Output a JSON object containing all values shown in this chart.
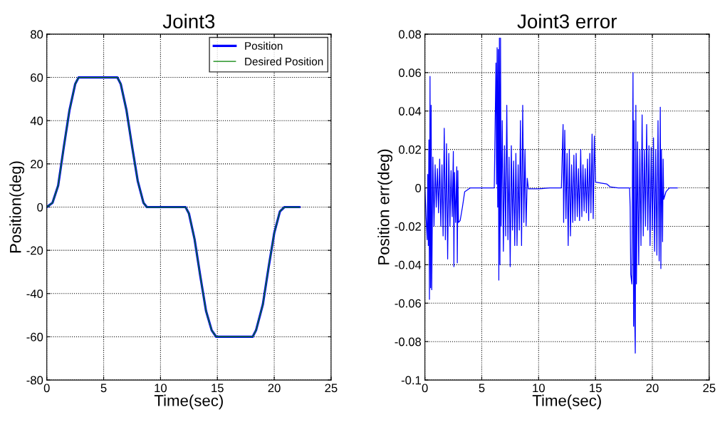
{
  "chart_data": [
    {
      "type": "line",
      "title": "Joint3",
      "xlabel": "Time(sec)",
      "ylabel": "Position(deg)",
      "xlim": [
        0,
        25
      ],
      "ylim": [
        -80,
        80
      ],
      "xticks": [
        0,
        5,
        10,
        15,
        20,
        25
      ],
      "yticks": [
        -80,
        -60,
        -40,
        -20,
        0,
        20,
        40,
        60,
        80
      ],
      "grid": true,
      "legend": "top right",
      "x": [
        0,
        0.5,
        1,
        1.5,
        2,
        2.5,
        2.8,
        6.2,
        6.5,
        7,
        7.5,
        8,
        8.5,
        8.8,
        12.2,
        12.5,
        13,
        13.5,
        14,
        14.5,
        14.9,
        18.1,
        18.4,
        19,
        19.5,
        20,
        20.5,
        20.9,
        22.2
      ],
      "series": [
        {
          "name": "Position",
          "color": "#0000ff",
          "values": [
            0,
            2,
            10,
            28,
            45,
            57,
            60,
            60,
            57,
            45,
            28,
            12,
            2,
            0,
            0,
            -3,
            -15,
            -32,
            -48,
            -57,
            -60,
            -60,
            -57,
            -45,
            -28,
            -12,
            -2,
            0,
            0
          ]
        },
        {
          "name": "Desired Position",
          "color": "#008000",
          "values": [
            0,
            2,
            10,
            28,
            45,
            57,
            60,
            60,
            57,
            45,
            28,
            12,
            2,
            0,
            0,
            -3,
            -15,
            -32,
            -48,
            -57,
            -60,
            -60,
            -57,
            -45,
            -28,
            -12,
            -2,
            0,
            0
          ]
        }
      ]
    },
    {
      "type": "line",
      "title": "Joint3 error",
      "xlabel": "Time(sec)",
      "ylabel": "Position err(deg)",
      "xlim": [
        0,
        25
      ],
      "ylim": [
        -0.1,
        0.08
      ],
      "xticks": [
        0,
        5,
        10,
        15,
        20,
        25
      ],
      "yticks": [
        -0.1,
        -0.08,
        -0.06,
        -0.04,
        -0.02,
        0,
        0.02,
        0.04,
        0.06,
        0.08
      ],
      "grid": true,
      "series": [
        {
          "color": "#0000ff",
          "x": [
            0,
            0.1,
            0.2,
            0.25,
            0.3,
            0.35,
            0.4,
            0.45,
            0.5,
            0.55,
            0.6,
            0.7,
            0.8,
            0.9,
            1.0,
            1.1,
            1.2,
            1.3,
            1.4,
            1.5,
            1.6,
            1.7,
            1.8,
            1.9,
            2.0,
            2.1,
            2.2,
            2.3,
            2.4,
            2.5,
            2.55,
            2.6,
            2.7,
            2.8,
            2.85,
            2.9,
            2.95,
            3.1,
            3.3,
            3.5,
            4,
            6,
            6.1,
            6.15,
            6.25,
            6.3,
            6.35,
            6.4,
            6.45,
            6.5,
            6.55,
            6.6,
            6.65,
            6.7,
            6.8,
            6.9,
            7.0,
            7.1,
            7.2,
            7.3,
            7.4,
            7.5,
            7.6,
            7.7,
            7.8,
            7.9,
            8.0,
            8.1,
            8.2,
            8.3,
            8.4,
            8.5,
            8.6,
            8.7,
            8.8,
            8.9,
            9.0,
            9.1,
            10,
            11,
            12,
            12.15,
            12.2,
            12.3,
            12.4,
            12.5,
            12.6,
            12.7,
            12.8,
            12.9,
            13,
            13.1,
            13.2,
            13.3,
            13.4,
            13.5,
            13.6,
            13.7,
            13.8,
            13.9,
            14,
            14.1,
            14.2,
            14.3,
            14.4,
            14.5,
            14.6,
            14.7,
            14.8,
            14.9,
            15.0,
            15.5,
            16,
            16.3,
            17,
            18,
            18.05,
            18.1,
            18.2,
            18.3,
            18.35,
            18.4,
            18.45,
            18.5,
            18.55,
            18.6,
            18.7,
            18.8,
            18.9,
            19.0,
            19.1,
            19.2,
            19.3,
            19.4,
            19.5,
            19.6,
            19.7,
            19.8,
            19.9,
            20.0,
            20.1,
            20.2,
            20.3,
            20.4,
            20.5,
            20.6,
            20.7,
            20.75,
            20.8,
            20.9,
            20.95,
            21.0,
            21.2,
            21.5,
            22.2
          ],
          "values": [
            0,
            -0.015,
            -0.027,
            0.007,
            -0.03,
            0.025,
            -0.058,
            0.058,
            -0.052,
            0.043,
            -0.053,
            0.016,
            -0.02,
            0.012,
            -0.01,
            0.01,
            -0.013,
            0.015,
            -0.02,
            0.012,
            -0.025,
            0.031,
            -0.027,
            0.023,
            -0.037,
            0.018,
            -0.02,
            0.009,
            -0.015,
            0.019,
            -0.041,
            0.008,
            -0.018,
            0.011,
            -0.039,
            0.009,
            -0.018,
            -0.017,
            -0.01,
            -0.002,
            0,
            0,
            0,
            0.022,
            0.065,
            0.002,
            0.073,
            -0.01,
            0.072,
            -0.048,
            0.078,
            -0.04,
            0.078,
            -0.02,
            0.035,
            -0.033,
            0.022,
            -0.025,
            0.043,
            -0.027,
            0.016,
            -0.041,
            0.022,
            -0.022,
            0.014,
            -0.03,
            0.018,
            -0.03,
            0.012,
            -0.022,
            0.035,
            -0.03,
            0.043,
            -0.018,
            0.02,
            -0.02,
            0.005,
            -0.0005,
            -0.0005,
            0,
            0,
            0.033,
            -0.018,
            0.03,
            -0.016,
            0.018,
            -0.03,
            0.02,
            -0.025,
            0.012,
            -0.018,
            0.017,
            -0.017,
            0.018,
            -0.015,
            0.01,
            -0.017,
            0.02,
            -0.015,
            0.012,
            -0.012,
            0.01,
            -0.013,
            0.015,
            -0.017,
            0.018,
            -0.013,
            0.028,
            -0.016,
            0.027,
            0.003,
            0.0025,
            0.002,
            0.0005,
            0,
            0,
            -0.01,
            -0.045,
            -0.05,
            0.06,
            -0.072,
            0.035,
            -0.068,
            -0.086,
            0.043,
            -0.05,
            0.024,
            -0.04,
            0.02,
            -0.03,
            0.038,
            -0.025,
            0.02,
            -0.02,
            0.033,
            -0.022,
            0.022,
            -0.03,
            0.021,
            -0.022,
            0.026,
            -0.033,
            0.02,
            -0.035,
            0.035,
            -0.038,
            0.042,
            -0.042,
            0.02,
            -0.028,
            0.015,
            -0.006,
            -0.002,
            0,
            0
          ]
        }
      ]
    }
  ]
}
